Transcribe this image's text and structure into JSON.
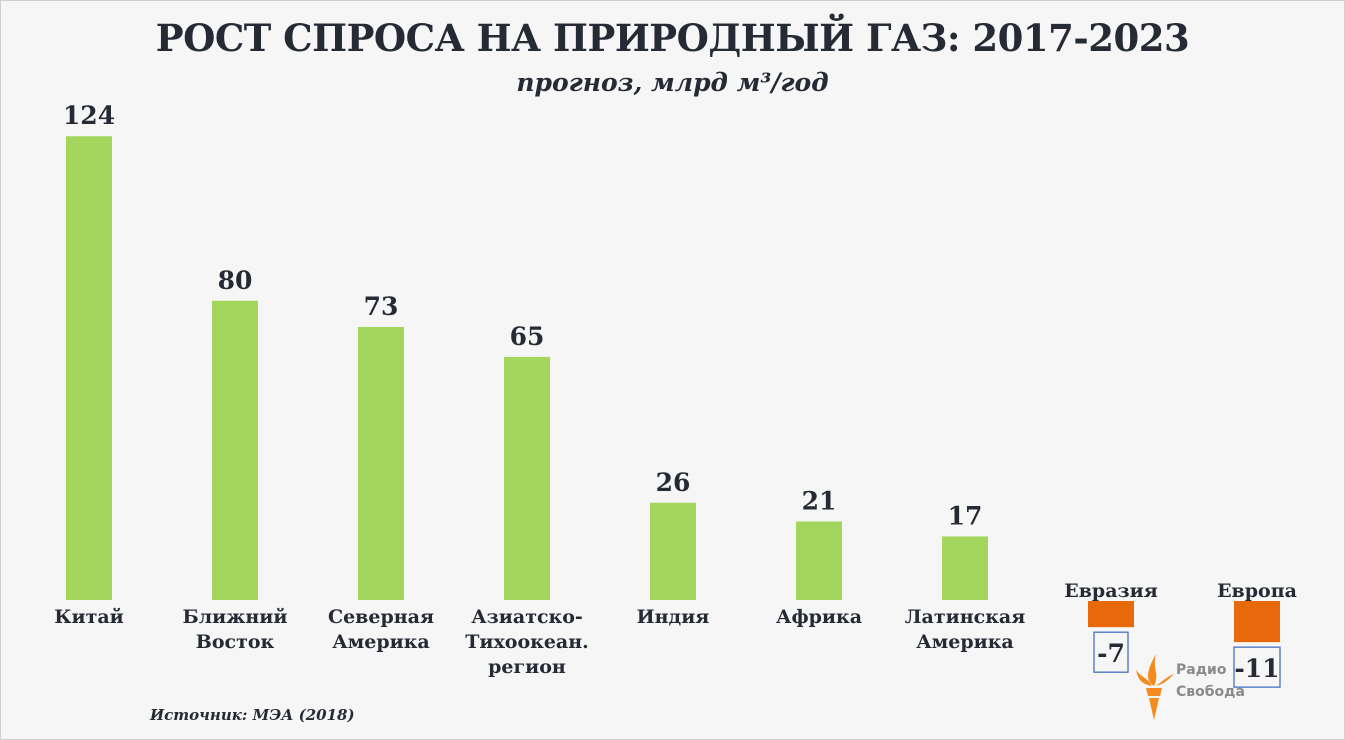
{
  "chart_data": {
    "type": "bar",
    "title": "РОСТ СПРОСА НА ПРИРОДНЫЙ ГАЗ: 2017-2023",
    "subtitle": "прогноз, млрд м³/год",
    "xlabel": "",
    "ylabel": "",
    "ylim": [
      -11,
      124
    ],
    "grid": false,
    "categories": [
      [
        "Китай"
      ],
      [
        "Ближний",
        "Восток"
      ],
      [
        "Северная",
        "Америка"
      ],
      [
        "Азиатско-",
        "Тихоокеан.",
        "регион"
      ],
      [
        "Индия"
      ],
      [
        "Африка"
      ],
      [
        "Латинская",
        "Америка"
      ],
      [
        "Евразия"
      ],
      [
        "Европа"
      ]
    ],
    "values": [
      124,
      80,
      73,
      65,
      26,
      21,
      17,
      -7,
      -11
    ],
    "value_labels": [
      "124",
      "80",
      "73",
      "65",
      "26",
      "21",
      "17",
      "-7",
      "-11"
    ],
    "colors": {
      "positive": "#a4d65e",
      "negative": "#e8690a",
      "label_box_border": "#4472c4"
    }
  },
  "source": "Источник: МЭА (2018)",
  "logo": {
    "line1": "Радио",
    "line2": "Свобода",
    "color": "#f58a1f"
  }
}
